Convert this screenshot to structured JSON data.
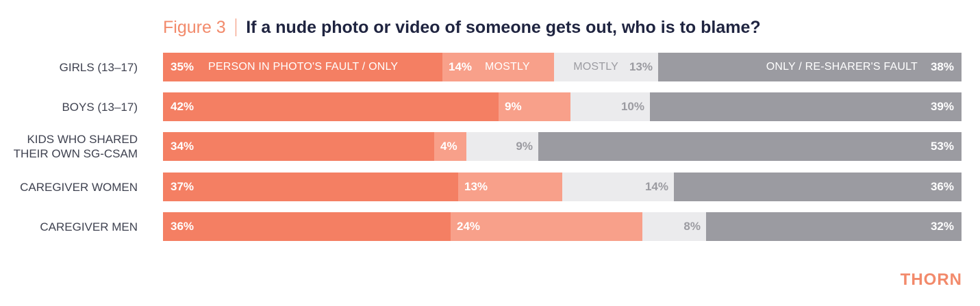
{
  "figure": {
    "label": "Figure 3",
    "title": "If a nude photo or video of someone gets out, who is to blame?"
  },
  "logo_text": "THORN",
  "colors": {
    "only_person": "#f47f63",
    "mostly_person": "#f8a08a",
    "mostly_resharer": "#ebebed",
    "only_resharer": "#9b9ba1",
    "text_on_dark": "#ffffff",
    "text_on_light": "#9b9ba1"
  },
  "chart_data": {
    "type": "bar",
    "orientation": "horizontal",
    "stacked": true,
    "normalized": true,
    "title": "If a nude photo or video of someone gets out, who is to blame?",
    "categories": [
      "GIRLS (13–17)",
      "BOYS (13–17)",
      "KIDS WHO SHARED THEIR OWN SG-CSAM",
      "CAREGIVER WOMEN",
      "CAREGIVER MEN"
    ],
    "series": [
      {
        "legend_label": "PERSON IN PHOTO'S FAULT / ONLY",
        "values": [
          35,
          42,
          34,
          37,
          36
        ],
        "labels": [
          "35%",
          "42%",
          "34%",
          "37%",
          "36%"
        ]
      },
      {
        "legend_label": "MOSTLY",
        "values": [
          14,
          9,
          4,
          13,
          24
        ],
        "labels": [
          "14%",
          "9%",
          "4%",
          "13%",
          "24%"
        ]
      },
      {
        "legend_label": "MOSTLY",
        "values": [
          13,
          10,
          9,
          14,
          8
        ],
        "labels": [
          "13%",
          "10%",
          "9%",
          "14%",
          "8%"
        ]
      },
      {
        "legend_label": "ONLY / RE-SHARER'S FAULT",
        "values": [
          38,
          39,
          53,
          36,
          32
        ],
        "labels": [
          "38%",
          "39%",
          "53%",
          "36%",
          "32%"
        ]
      }
    ],
    "xlim": [
      0,
      100
    ],
    "legend": "inline-first-row",
    "grid": false
  }
}
